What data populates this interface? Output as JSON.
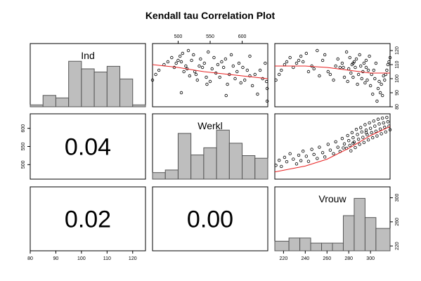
{
  "title": "Kendall tau Correlation Plot",
  "chart_data": {
    "type": "scatter",
    "variables": [
      "Ind",
      "Werkl",
      "Vrouw"
    ],
    "ranges": {
      "Ind": [
        80,
        125
      ],
      "Werkl": [
        460,
        640
      ],
      "Vrouw": [
        212,
        318
      ]
    },
    "ticks": {
      "Ind": {
        "labels": [
          "80",
          "90",
          "100",
          "110",
          "120"
        ],
        "values": [
          80,
          90,
          100,
          110,
          120
        ]
      },
      "Werkl": {
        "labels": [
          "500",
          "550",
          "600"
        ],
        "values": [
          500,
          550,
          600
        ]
      },
      "Werkl_left": {
        "labels": [
          "500",
          "550",
          "600"
        ],
        "values": [
          500,
          550,
          600
        ]
      },
      "Vrouw": {
        "labels": [
          "220",
          "240",
          "260",
          "280",
          "300"
        ],
        "values": [
          220,
          240,
          260,
          280,
          300
        ]
      },
      "Vrouw_right": {
        "labels": [
          "220",
          "260",
          "300"
        ],
        "values": [
          220,
          260,
          300
        ]
      },
      "Ind_right": {
        "labels": [
          "80",
          "90",
          "100",
          "110",
          "120"
        ],
        "values": [
          80,
          90,
          100,
          110,
          120
        ]
      }
    },
    "correlations": [
      {
        "row": "Werkl",
        "col": "Ind",
        "value": "0.04"
      },
      {
        "row": "Vrouw",
        "col": "Ind",
        "value": "0.02"
      },
      {
        "row": "Vrouw",
        "col": "Werkl",
        "value": "0.00"
      }
    ],
    "histograms": {
      "Ind": {
        "breaks": [
          80,
          85,
          90,
          95,
          100,
          105,
          110,
          115,
          120,
          125
        ],
        "heights": [
          0.03,
          0.18,
          0.14,
          0.72,
          0.6,
          0.55,
          0.64,
          0.44,
          0.03
        ]
      },
      "Werkl": {
        "breaks": [
          460,
          480,
          500,
          520,
          540,
          560,
          580,
          600,
          620,
          640
        ],
        "heights": [
          0.1,
          0.14,
          0.7,
          0.37,
          0.48,
          0.75,
          0.55,
          0.36,
          0.32
        ]
      },
      "Vrouw": {
        "breaks": [
          212,
          225,
          235,
          245,
          255,
          265,
          275,
          285,
          295,
          305,
          318
        ],
        "heights": [
          0.15,
          0.2,
          0.2,
          0.12,
          0.12,
          0.12,
          0.55,
          0.82,
          0.52,
          0.35
        ]
      }
    },
    "series": [
      {
        "x": [
          460,
          465,
          470,
          478,
          484,
          490,
          494,
          497,
          500,
          503,
          505,
          507,
          509,
          512,
          514,
          516,
          518,
          521,
          524,
          526,
          528,
          530,
          533,
          535,
          538,
          541,
          544,
          547,
          550,
          553,
          556,
          559,
          562,
          565,
          568,
          571,
          574,
          577,
          580,
          583,
          586,
          589,
          592,
          595,
          598,
          601,
          604,
          608,
          612,
          616,
          620,
          624,
          628,
          632,
          636,
          639,
          639,
          638,
          505,
          545,
          575,
          612
        ],
        "y": [
          99,
          103,
          106,
          110,
          112,
          115,
          108,
          111,
          113,
          116,
          112,
          118,
          105,
          109,
          107,
          120,
          102,
          113,
          117,
          105,
          103,
          99,
          109,
          114,
          108,
          111,
          101,
          119,
          98,
          107,
          115,
          104,
          110,
          101,
          112,
          108,
          114,
          96,
          103,
          117,
          109,
          100,
          105,
          111,
          97,
          108,
          99,
          106,
          116,
          95,
          103,
          89,
          106,
          100,
          111,
          84,
          93,
          98,
          90,
          96,
          88,
          102
        ]
      },
      {
        "x": [
          213,
          216,
          218,
          221,
          223,
          226,
          229,
          232,
          234,
          236,
          238,
          241,
          243,
          246,
          248,
          251,
          253,
          256,
          258,
          261,
          263,
          266,
          268,
          270,
          272,
          274,
          276,
          278,
          279,
          280,
          281,
          282,
          283,
          284,
          285,
          286,
          287,
          288,
          289,
          290,
          291,
          292,
          293,
          294,
          295,
          296,
          297,
          298,
          299,
          300,
          301,
          302,
          303,
          304,
          305,
          306,
          307,
          308,
          309,
          310,
          311,
          312,
          313,
          314,
          315,
          316,
          317,
          318,
          275,
          284,
          296
        ],
        "y": [
          498,
          512,
          495,
          520,
          508,
          530,
          515,
          502,
          526,
          511,
          537,
          523,
          509,
          542,
          528,
          517,
          548,
          533,
          521,
          556,
          540,
          530,
          563,
          548,
          536,
          572,
          557,
          545,
          580,
          566,
          553,
          538,
          588,
          574,
          562,
          547,
          597,
          583,
          570,
          556,
          602,
          590,
          575,
          561,
          610,
          595,
          582,
          568,
          615,
          600,
          588,
          574,
          620,
          606,
          592,
          579,
          625,
          612,
          598,
          585,
          628,
          615,
          603,
          590,
          630,
          618,
          606,
          596,
          546,
          559,
          588
        ]
      }
    ],
    "fits": {
      "Werkl_Ind": [
        [
          460,
          110
        ],
        [
          500,
          108
        ],
        [
          540,
          105
        ],
        [
          580,
          103
        ],
        [
          620,
          101
        ],
        [
          640,
          100
        ]
      ],
      "Vrouw_Ind": [
        [
          212,
          109
        ],
        [
          240,
          109
        ],
        [
          260,
          108
        ],
        [
          280,
          106
        ],
        [
          300,
          104
        ],
        [
          318,
          104
        ]
      ],
      "Vrouw_Werkl": [
        [
          212,
          480
        ],
        [
          240,
          496
        ],
        [
          260,
          515
        ],
        [
          280,
          545
        ],
        [
          300,
          580
        ],
        [
          318,
          605
        ]
      ]
    },
    "colors": {
      "hist": "#bebebe",
      "fit": "#e82020",
      "frame": "#000000"
    }
  }
}
